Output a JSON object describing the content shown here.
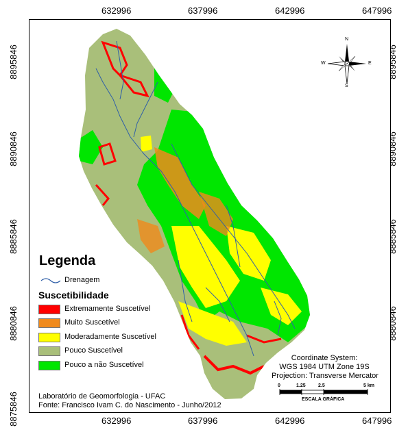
{
  "grid": {
    "x_ticks": [
      "632996",
      "637996",
      "642996",
      "647996"
    ],
    "y_ticks": [
      "8895846",
      "8890846",
      "8885846",
      "8880846",
      "8875846"
    ]
  },
  "legend": {
    "title": "Legenda",
    "drainage_label": "Drenagem",
    "subtitle": "Suscetibilidade",
    "classes": [
      {
        "label": "Extremamente Suscetível",
        "color": "#ff0000"
      },
      {
        "label": "Muito Suscetível",
        "color": "#f08a1c"
      },
      {
        "label": "Moderadamente Suscetível",
        "color": "#ffff00"
      },
      {
        "label": "Pouco Suscetível",
        "color": "#a9bf7a"
      },
      {
        "label": "Pouco a não Suscetível",
        "color": "#00e600"
      }
    ],
    "drainage_color": "#2f5fa8"
  },
  "north_arrow": {
    "n": "N",
    "s": "S",
    "e": "E",
    "w": "W"
  },
  "coordinate_system": {
    "line1": "Coordinate System:",
    "line2": "WGS 1984 UTM Zone 19S",
    "line3": "Projection: Transverse Mercator"
  },
  "scale_bar": {
    "ticks": [
      "0",
      "1.25",
      "2.5",
      "5 km"
    ],
    "caption": "ESCALA GRÁFICA"
  },
  "credits": {
    "line1": "Laboratório de Geomorfologia - UFAC",
    "line2": "Fonte: Francisco Ivam C. do Nascimento - Junho/2012"
  }
}
